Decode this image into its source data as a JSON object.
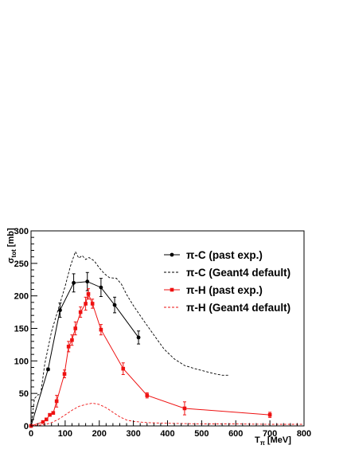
{
  "chart_data": {
    "type": "scatter",
    "xlabel": {
      "main": "T",
      "sub": "π",
      "unit": " [MeV]"
    },
    "ylabel": {
      "main": "σ",
      "sub": "tot",
      "unit": " [mb]"
    },
    "xlim": [
      0,
      800
    ],
    "ylim": [
      0,
      300
    ],
    "xticks": [
      0,
      100,
      200,
      300,
      400,
      500,
      600,
      700,
      800
    ],
    "yticks": [
      0,
      50,
      100,
      150,
      200,
      250,
      300
    ],
    "grid": false,
    "legend_position": "top-right",
    "series": [
      {
        "name": "π-C (past exp.)",
        "kind": "points-line",
        "color": "#000000",
        "marker": "circle",
        "points": [
          {
            "x": 0,
            "y": 0,
            "err": 0
          },
          {
            "x": 50,
            "y": 87,
            "err": 2
          },
          {
            "x": 85,
            "y": 178,
            "err": 11
          },
          {
            "x": 125,
            "y": 220,
            "err": 14
          },
          {
            "x": 165,
            "y": 222,
            "err": 14
          },
          {
            "x": 205,
            "y": 213,
            "err": 14
          },
          {
            "x": 245,
            "y": 186,
            "err": 12
          },
          {
            "x": 315,
            "y": 136,
            "err": 10
          }
        ]
      },
      {
        "name": "π-C (Geant4 default)",
        "kind": "dashed-line",
        "color": "#000000",
        "points": [
          {
            "x": 0,
            "y": 0
          },
          {
            "x": 10,
            "y": 42
          },
          {
            "x": 20,
            "y": 48
          },
          {
            "x": 28,
            "y": 48
          },
          {
            "x": 40,
            "y": 95
          },
          {
            "x": 60,
            "y": 145
          },
          {
            "x": 80,
            "y": 180
          },
          {
            "x": 100,
            "y": 215
          },
          {
            "x": 115,
            "y": 245
          },
          {
            "x": 130,
            "y": 268
          },
          {
            "x": 140,
            "y": 258
          },
          {
            "x": 150,
            "y": 262
          },
          {
            "x": 160,
            "y": 256
          },
          {
            "x": 170,
            "y": 259
          },
          {
            "x": 185,
            "y": 254
          },
          {
            "x": 200,
            "y": 243
          },
          {
            "x": 215,
            "y": 234
          },
          {
            "x": 230,
            "y": 228
          },
          {
            "x": 250,
            "y": 227
          },
          {
            "x": 265,
            "y": 218
          },
          {
            "x": 280,
            "y": 202
          },
          {
            "x": 300,
            "y": 185
          },
          {
            "x": 330,
            "y": 162
          },
          {
            "x": 360,
            "y": 140
          },
          {
            "x": 390,
            "y": 118
          },
          {
            "x": 420,
            "y": 103
          },
          {
            "x": 450,
            "y": 93
          },
          {
            "x": 480,
            "y": 88
          },
          {
            "x": 510,
            "y": 84
          },
          {
            "x": 540,
            "y": 80
          },
          {
            "x": 560,
            "y": 78
          },
          {
            "x": 580,
            "y": 78
          }
        ]
      },
      {
        "name": "π-H (past exp.)",
        "kind": "points-line",
        "color": "#ee1111",
        "marker": "square",
        "points": [
          {
            "x": 0,
            "y": 0,
            "err": 0
          },
          {
            "x": 35,
            "y": 6,
            "err": 1
          },
          {
            "x": 45,
            "y": 10,
            "err": 1
          },
          {
            "x": 55,
            "y": 17,
            "err": 2
          },
          {
            "x": 65,
            "y": 20,
            "err": 2
          },
          {
            "x": 75,
            "y": 38,
            "err": 9
          },
          {
            "x": 98,
            "y": 80,
            "err": 6
          },
          {
            "x": 110,
            "y": 122,
            "err": 8
          },
          {
            "x": 120,
            "y": 132,
            "err": 8
          },
          {
            "x": 130,
            "y": 150,
            "err": 10
          },
          {
            "x": 145,
            "y": 175,
            "err": 8
          },
          {
            "x": 160,
            "y": 188,
            "err": 10
          },
          {
            "x": 168,
            "y": 203,
            "err": 8
          },
          {
            "x": 180,
            "y": 188,
            "err": 7
          },
          {
            "x": 205,
            "y": 148,
            "err": 8
          },
          {
            "x": 270,
            "y": 88,
            "err": 9
          },
          {
            "x": 340,
            "y": 47,
            "err": 4
          },
          {
            "x": 450,
            "y": 27,
            "err": 10
          },
          {
            "x": 700,
            "y": 17,
            "err": 4
          }
        ]
      },
      {
        "name": "π-H (Geant4 default)",
        "kind": "dashed-line",
        "color": "#ee1111",
        "points": [
          {
            "x": 0,
            "y": 0
          },
          {
            "x": 40,
            "y": 2
          },
          {
            "x": 60,
            "y": 5
          },
          {
            "x": 80,
            "y": 10
          },
          {
            "x": 100,
            "y": 17
          },
          {
            "x": 120,
            "y": 24
          },
          {
            "x": 140,
            "y": 30
          },
          {
            "x": 160,
            "y": 33
          },
          {
            "x": 180,
            "y": 35
          },
          {
            "x": 200,
            "y": 33
          },
          {
            "x": 220,
            "y": 28
          },
          {
            "x": 240,
            "y": 21
          },
          {
            "x": 260,
            "y": 14
          },
          {
            "x": 280,
            "y": 9
          },
          {
            "x": 300,
            "y": 7
          },
          {
            "x": 340,
            "y": 5
          },
          {
            "x": 400,
            "y": 4
          },
          {
            "x": 500,
            "y": 3
          },
          {
            "x": 600,
            "y": 3
          },
          {
            "x": 700,
            "y": 2.5
          },
          {
            "x": 800,
            "y": 2.5
          }
        ]
      }
    ]
  }
}
